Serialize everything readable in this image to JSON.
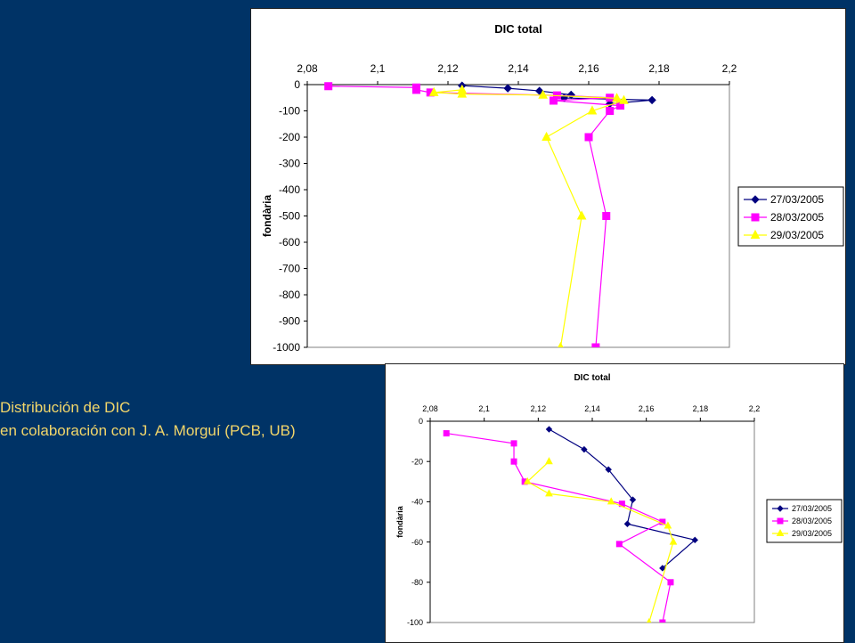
{
  "caption": {
    "line1": "Distribución de DIC",
    "line2": " en colaboración con J. A. Morguí (PCB, UB)"
  },
  "colors": {
    "background": "#003366",
    "caption": "#F2D66A"
  },
  "chart_data": [
    {
      "type": "line",
      "title": "DIC total",
      "ylabel": "fondària",
      "xlabel": "",
      "xlim": [
        2.08,
        2.2
      ],
      "ylim": [
        -1000,
        0
      ],
      "x_ticks": [
        "2,08",
        "2,1",
        "2,12",
        "2,14",
        "2,16",
        "2,18",
        "2,2"
      ],
      "y_ticks": [
        "0",
        "-100",
        "-200",
        "-300",
        "-400",
        "-500",
        "-600",
        "-700",
        "-800",
        "-900",
        "-1000"
      ],
      "x_axis_position": "top",
      "legend": "right",
      "series": [
        {
          "name": "27/03/2005",
          "color": "#000080",
          "marker": "diamond",
          "points": [
            [
              2.124,
              -4
            ],
            [
              2.137,
              -14
            ],
            [
              2.146,
              -24
            ],
            [
              2.155,
              -39
            ],
            [
              2.153,
              -51
            ],
            [
              2.178,
              -59
            ],
            [
              2.166,
              -73
            ]
          ]
        },
        {
          "name": "28/03/2005",
          "color": "#FF00FF",
          "marker": "square",
          "points": [
            [
              2.086,
              -6
            ],
            [
              2.111,
              -11
            ],
            [
              2.111,
              -20
            ],
            [
              2.115,
              -30
            ],
            [
              2.151,
              -41
            ],
            [
              2.166,
              -50
            ],
            [
              2.15,
              -61
            ],
            [
              2.169,
              -80
            ],
            [
              2.166,
              -100
            ],
            [
              2.16,
              -200
            ],
            [
              2.165,
              -500
            ],
            [
              2.162,
              -1000
            ]
          ]
        },
        {
          "name": "29/03/2005",
          "color": "#FFFF00",
          "marker": "triangle",
          "points": [
            [
              2.124,
              -20
            ],
            [
              2.116,
              -30
            ],
            [
              2.124,
              -36
            ],
            [
              2.147,
              -40
            ],
            [
              2.168,
              -52
            ],
            [
              2.17,
              -60
            ],
            [
              2.161,
              -100
            ],
            [
              2.148,
              -200
            ],
            [
              2.158,
              -500
            ],
            [
              2.152,
              -1000
            ]
          ]
        }
      ]
    },
    {
      "type": "line",
      "title": "DIC total",
      "ylabel": "fondària",
      "xlabel": "",
      "xlim": [
        2.08,
        2.2
      ],
      "ylim": [
        -100,
        0
      ],
      "x_ticks": [
        "2,08",
        "2,1",
        "2,12",
        "2,14",
        "2,16",
        "2,18",
        "2,2"
      ],
      "y_ticks": [
        "0",
        "-20",
        "-40",
        "-60",
        "-80",
        "-100"
      ],
      "x_axis_position": "top",
      "legend": "right",
      "series": [
        {
          "name": "27/03/2005",
          "color": "#000080",
          "marker": "diamond",
          "points": [
            [
              2.124,
              -4
            ],
            [
              2.137,
              -14
            ],
            [
              2.146,
              -24
            ],
            [
              2.155,
              -39
            ],
            [
              2.153,
              -51
            ],
            [
              2.178,
              -59
            ],
            [
              2.166,
              -73
            ]
          ]
        },
        {
          "name": "28/03/2005",
          "color": "#FF00FF",
          "marker": "square",
          "points": [
            [
              2.086,
              -6
            ],
            [
              2.111,
              -11
            ],
            [
              2.111,
              -20
            ],
            [
              2.115,
              -30
            ],
            [
              2.151,
              -41
            ],
            [
              2.166,
              -50
            ],
            [
              2.15,
              -61
            ],
            [
              2.169,
              -80
            ],
            [
              2.166,
              -100
            ]
          ]
        },
        {
          "name": "29/03/2005",
          "color": "#FFFF00",
          "marker": "triangle",
          "points": [
            [
              2.124,
              -20
            ],
            [
              2.116,
              -30
            ],
            [
              2.124,
              -36
            ],
            [
              2.147,
              -40
            ],
            [
              2.168,
              -52
            ],
            [
              2.17,
              -60
            ],
            [
              2.161,
              -100
            ]
          ]
        }
      ]
    }
  ]
}
